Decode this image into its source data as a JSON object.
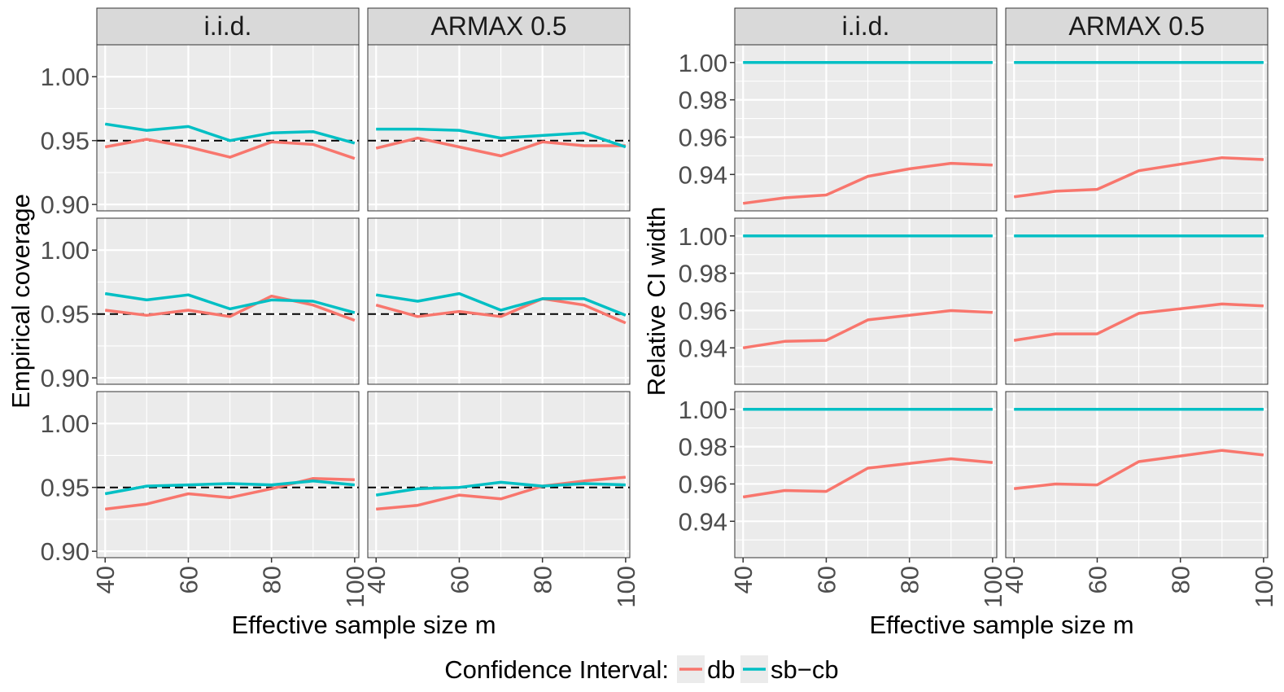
{
  "colors": {
    "db": "#F8766D",
    "sb_cb": "#00BFC4",
    "panel_bg": "#EBEBEB",
    "strip_bg": "#D9D9D9",
    "grid": "#FFFFFF",
    "reference": "#000000"
  },
  "legend": {
    "title": "Confidence Interval:",
    "items": [
      {
        "key": "db",
        "label": "db"
      },
      {
        "key": "sb_cb",
        "label": "sb−cb"
      }
    ]
  },
  "chart_data": [
    {
      "type": "line",
      "ylabel": "Empirical coverage",
      "xlabel": "Effective sample size m",
      "columns": [
        "i.i.d.",
        "ARMAX 0.5"
      ],
      "x": [
        40,
        50,
        60,
        70,
        80,
        90,
        100
      ],
      "xticks": [
        40,
        60,
        80,
        100
      ],
      "xlim": [
        38,
        101
      ],
      "ylim": [
        0.895,
        1.025
      ],
      "yticks": [
        0.9,
        0.95,
        1.0
      ],
      "ytick_labels": [
        "0.90",
        "0.95",
        "1.00"
      ],
      "reference_line": 0.95,
      "rows": [
        [
          {
            "series": [
              {
                "name": "db",
                "values": [
                  0.945,
                  0.951,
                  0.945,
                  0.937,
                  0.949,
                  0.947,
                  0.936
                ]
              },
              {
                "name": "sb-cb",
                "values": [
                  0.963,
                  0.958,
                  0.961,
                  0.95,
                  0.956,
                  0.957,
                  0.948
                ]
              }
            ]
          },
          {
            "series": [
              {
                "name": "db",
                "values": [
                  0.944,
                  0.952,
                  0.945,
                  0.938,
                  0.949,
                  0.946,
                  0.946
                ]
              },
              {
                "name": "sb-cb",
                "values": [
                  0.959,
                  0.959,
                  0.958,
                  0.952,
                  0.954,
                  0.956,
                  0.945
                ]
              }
            ]
          }
        ],
        [
          {
            "series": [
              {
                "name": "db",
                "values": [
                  0.953,
                  0.949,
                  0.953,
                  0.948,
                  0.964,
                  0.957,
                  0.945
                ]
              },
              {
                "name": "sb-cb",
                "values": [
                  0.966,
                  0.961,
                  0.965,
                  0.954,
                  0.961,
                  0.96,
                  0.951
                ]
              }
            ]
          },
          {
            "series": [
              {
                "name": "db",
                "values": [
                  0.957,
                  0.948,
                  0.952,
                  0.948,
                  0.962,
                  0.957,
                  0.943
                ]
              },
              {
                "name": "sb-cb",
                "values": [
                  0.965,
                  0.96,
                  0.966,
                  0.953,
                  0.962,
                  0.962,
                  0.949
                ]
              }
            ]
          }
        ],
        [
          {
            "series": [
              {
                "name": "db",
                "values": [
                  0.933,
                  0.937,
                  0.945,
                  0.942,
                  0.949,
                  0.957,
                  0.956
                ]
              },
              {
                "name": "sb-cb",
                "values": [
                  0.945,
                  0.951,
                  0.952,
                  0.953,
                  0.952,
                  0.955,
                  0.952
                ]
              }
            ]
          },
          {
            "series": [
              {
                "name": "db",
                "values": [
                  0.933,
                  0.936,
                  0.944,
                  0.941,
                  0.951,
                  0.955,
                  0.958
                ]
              },
              {
                "name": "sb-cb",
                "values": [
                  0.944,
                  0.949,
                  0.95,
                  0.954,
                  0.951,
                  0.953,
                  0.952
                ]
              }
            ]
          }
        ]
      ]
    },
    {
      "type": "line",
      "ylabel": "Relative CI width",
      "xlabel": "Effective sample size m",
      "columns": [
        "i.i.d.",
        "ARMAX 0.5"
      ],
      "x": [
        40,
        50,
        60,
        70,
        80,
        90,
        100
      ],
      "xticks": [
        40,
        60,
        80,
        100
      ],
      "xlim": [
        38,
        101
      ],
      "ylim": [
        0.9205,
        1.0095
      ],
      "yticks": [
        0.94,
        0.96,
        0.98,
        1.0
      ],
      "ytick_labels": [
        "0.94",
        "0.96",
        "0.98",
        "1.00"
      ],
      "rows": [
        [
          {
            "series": [
              {
                "name": "db",
                "values": [
                  0.9245,
                  0.9275,
                  0.929,
                  0.939,
                  0.943,
                  0.946,
                  0.945
                ]
              },
              {
                "name": "sb-cb",
                "values": [
                  1.0,
                  1.0,
                  1.0,
                  1.0,
                  1.0,
                  1.0,
                  1.0
                ]
              }
            ]
          },
          {
            "series": [
              {
                "name": "db",
                "values": [
                  0.928,
                  0.931,
                  0.932,
                  0.942,
                  0.9455,
                  0.949,
                  0.948
                ]
              },
              {
                "name": "sb-cb",
                "values": [
                  1.0,
                  1.0,
                  1.0,
                  1.0,
                  1.0,
                  1.0,
                  1.0
                ]
              }
            ]
          }
        ],
        [
          {
            "series": [
              {
                "name": "db",
                "values": [
                  0.94,
                  0.9435,
                  0.944,
                  0.955,
                  0.9575,
                  0.96,
                  0.959
                ]
              },
              {
                "name": "sb-cb",
                "values": [
                  1.0,
                  1.0,
                  1.0,
                  1.0,
                  1.0,
                  1.0,
                  1.0
                ]
              }
            ]
          },
          {
            "series": [
              {
                "name": "db",
                "values": [
                  0.944,
                  0.9475,
                  0.9475,
                  0.9585,
                  0.961,
                  0.9635,
                  0.9625
                ]
              },
              {
                "name": "sb-cb",
                "values": [
                  1.0,
                  1.0,
                  1.0,
                  1.0,
                  1.0,
                  1.0,
                  1.0
                ]
              }
            ]
          }
        ],
        [
          {
            "series": [
              {
                "name": "db",
                "values": [
                  0.953,
                  0.9565,
                  0.956,
                  0.9685,
                  0.971,
                  0.9735,
                  0.9715
                ]
              },
              {
                "name": "sb-cb",
                "values": [
                  1.0,
                  1.0,
                  1.0,
                  1.0,
                  1.0,
                  1.0,
                  1.0
                ]
              }
            ]
          },
          {
            "series": [
              {
                "name": "db",
                "values": [
                  0.9575,
                  0.96,
                  0.9595,
                  0.972,
                  0.975,
                  0.978,
                  0.9755
                ]
              },
              {
                "name": "sb-cb",
                "values": [
                  1.0,
                  1.0,
                  1.0,
                  1.0,
                  1.0,
                  1.0,
                  1.0
                ]
              }
            ]
          }
        ]
      ]
    }
  ]
}
